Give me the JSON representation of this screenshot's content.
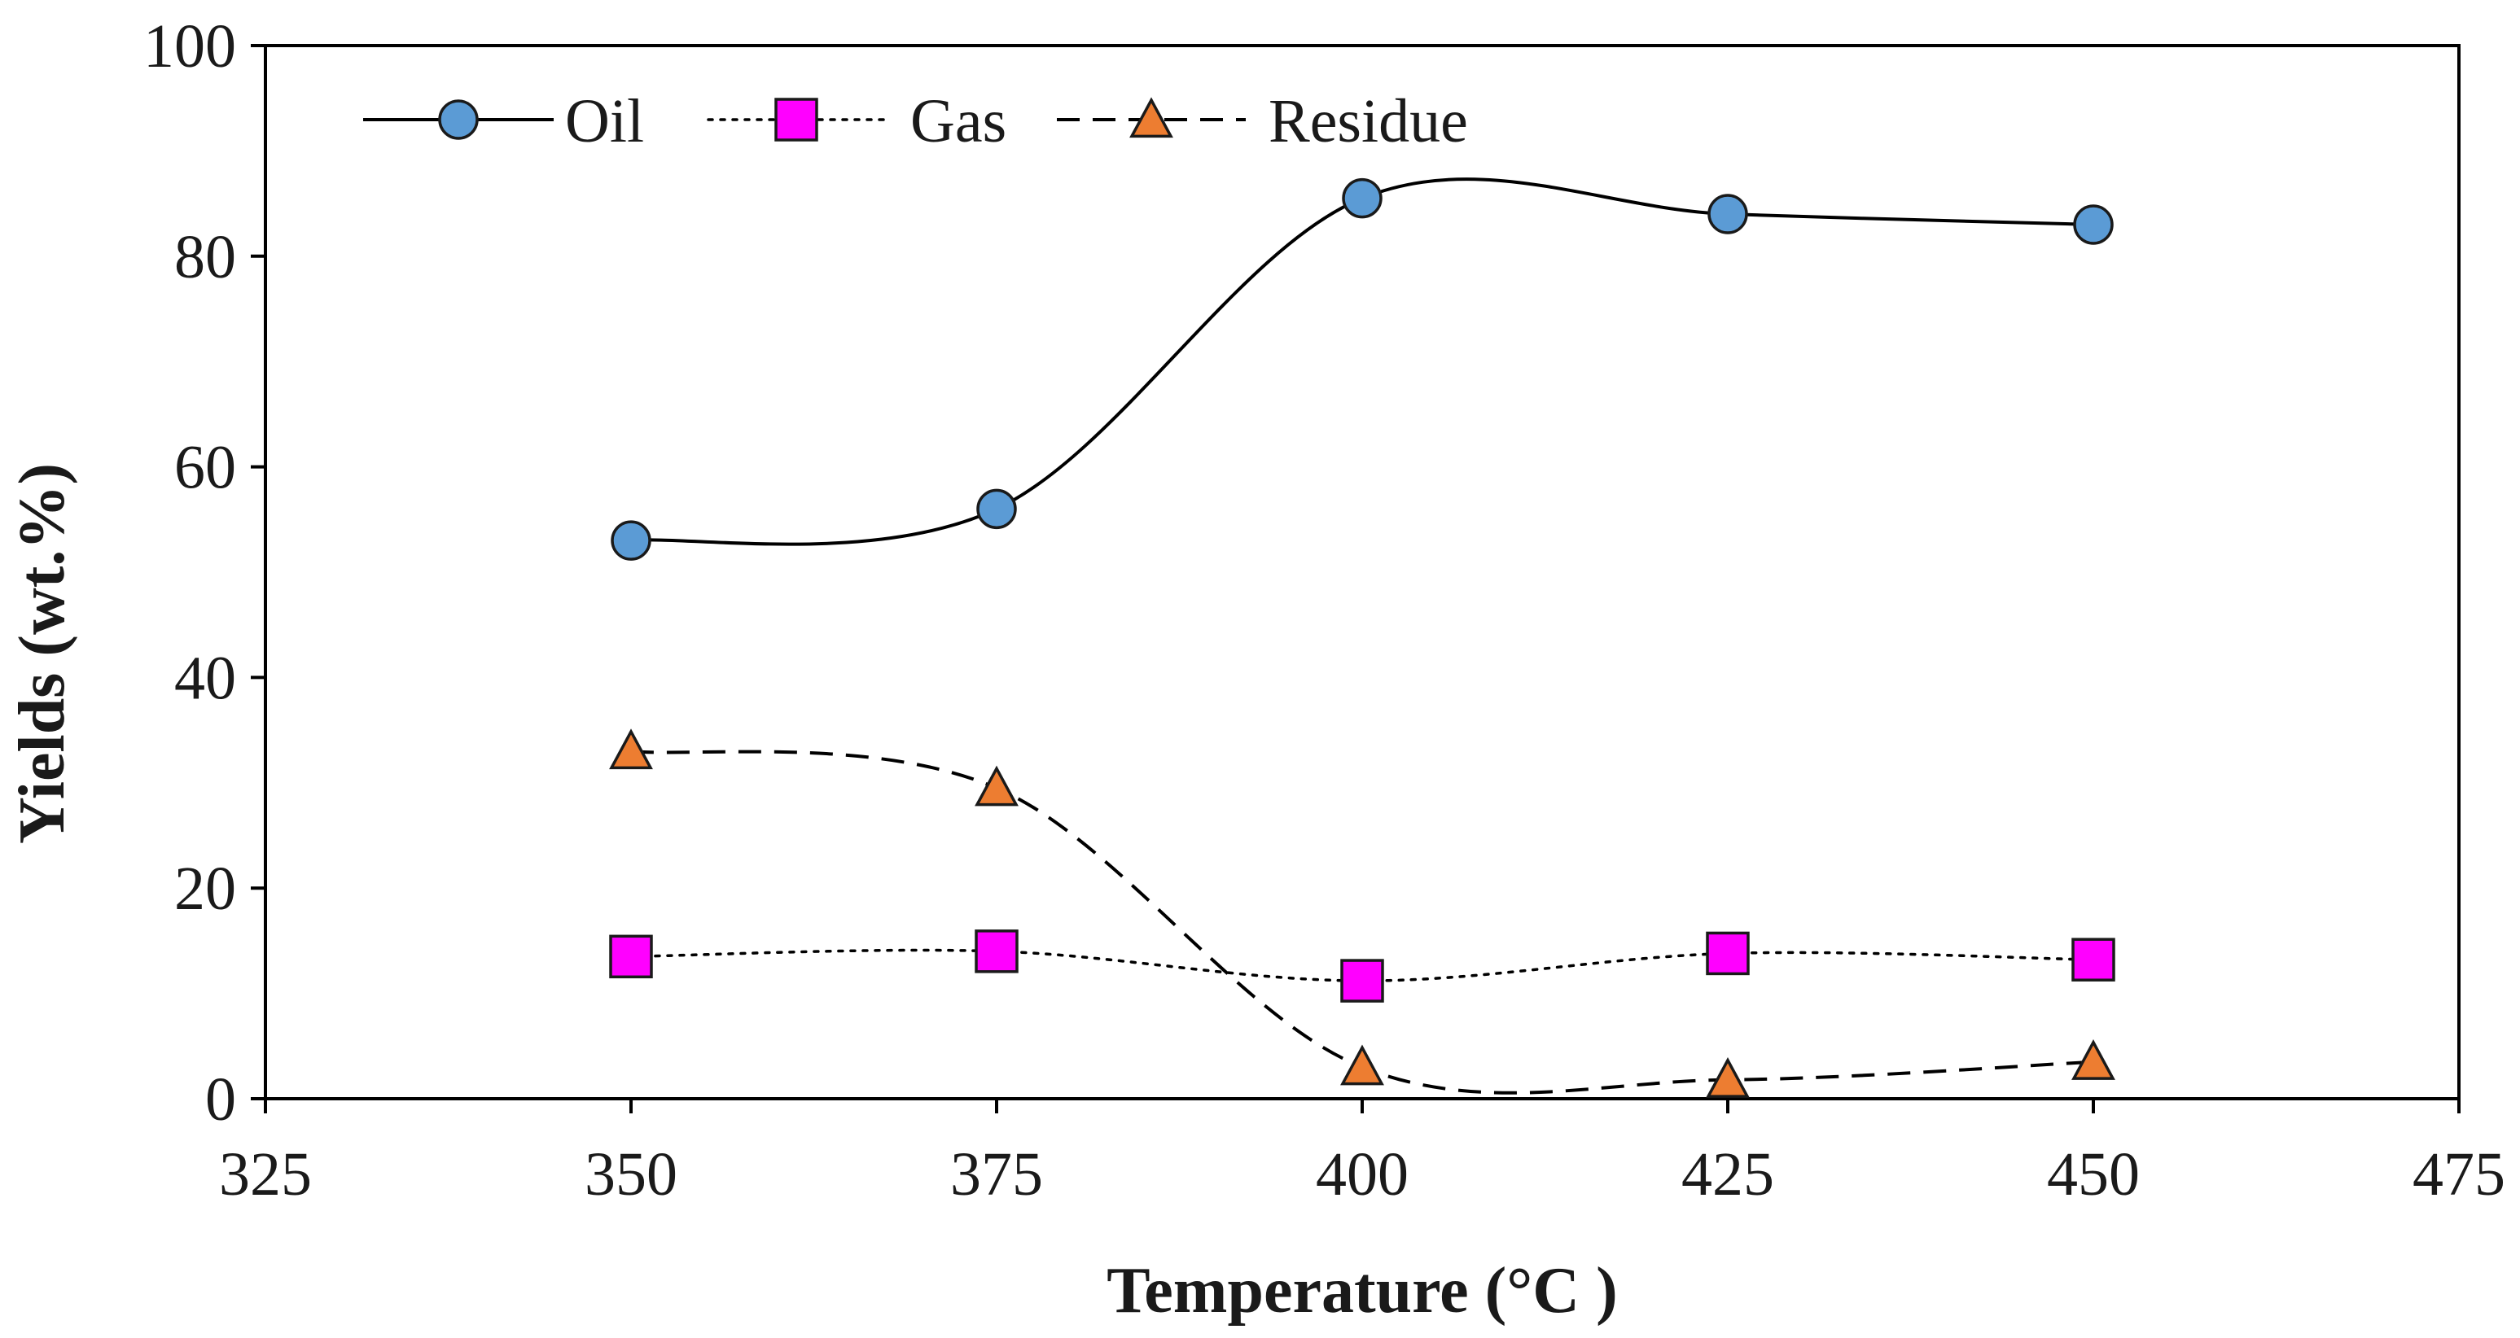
{
  "chart_data": {
    "type": "line",
    "title": "",
    "xlabel": "Temperature (°C )",
    "ylabel": "Yields (wt.%)",
    "xlim": [
      325,
      475
    ],
    "ylim": [
      0,
      100
    ],
    "xticks": [
      325,
      350,
      375,
      400,
      425,
      450,
      475
    ],
    "yticks": [
      0,
      20,
      40,
      60,
      80,
      100
    ],
    "x": [
      350,
      375,
      400,
      425,
      450
    ],
    "series": [
      {
        "name": "Oil",
        "values": [
          53,
          56,
          85.5,
          84,
          83
        ],
        "line": "solid",
        "marker": "circle",
        "color": "#5b9bd5"
      },
      {
        "name": "Gas",
        "values": [
          13.5,
          14,
          11.2,
          13.8,
          13.2
        ],
        "line": "dotted",
        "marker": "square",
        "color": "#ff00ff"
      },
      {
        "name": "Residue",
        "values": [
          33,
          29.5,
          3,
          1.8,
          3.5
        ],
        "line": "dashed",
        "marker": "triangle",
        "color": "#ed7d31"
      }
    ],
    "legend_position": "top-left",
    "grid": false
  }
}
